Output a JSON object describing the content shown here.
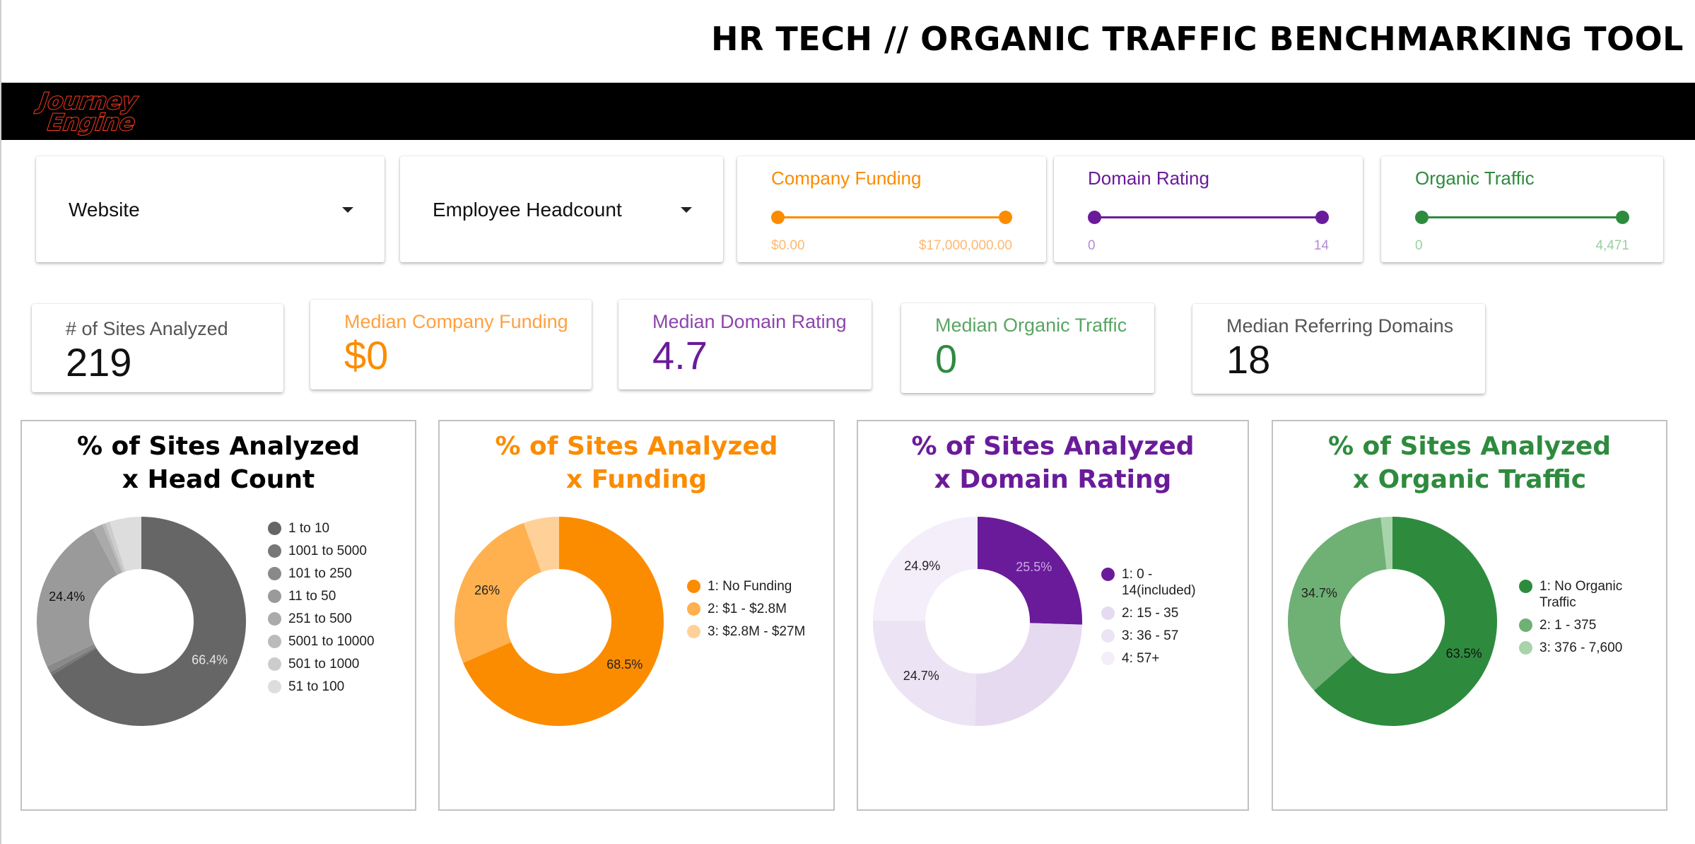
{
  "title": "HR TECH // ORGANIC TRAFFIC BENCHMARKING TOOL",
  "brand": {
    "line1": "Journey",
    "line2": "Engine",
    "color": "#ff3b1f"
  },
  "filters": {
    "website": {
      "label": "Website",
      "icon": "caret-down-icon"
    },
    "headcount": {
      "label": "Employee Headcount",
      "icon": "caret-down-icon"
    },
    "funding": {
      "label": "Company Funding",
      "min": "$0.00",
      "max": "$17,000,000.00",
      "min_value": 0,
      "max_value": 17000000,
      "color": "#fb8c00",
      "range_color": "#ffb871"
    },
    "domain_rating": {
      "label": "Domain Rating",
      "min": "0",
      "max": "14",
      "min_value": 0,
      "max_value": 14,
      "color": "#6a1b9a",
      "range_color": "#b28cd2"
    },
    "organic_traffic": {
      "label": "Organic Traffic",
      "min": "0",
      "max": "4,471",
      "min_value": 0,
      "max_value": 4471,
      "color": "#2e8b3e",
      "range_color": "#9bcf9f"
    }
  },
  "kpis": [
    {
      "label": "# of Sites Analyzed",
      "value": "219",
      "label_color": "#555555",
      "value_color": "#111111"
    },
    {
      "label": "Median Company Funding",
      "value": "$0",
      "label_color": "#ffa040",
      "value_color": "#fb8c00"
    },
    {
      "label": "Median Domain Rating",
      "value": "4.7",
      "label_color": "#8e44ad",
      "value_color": "#6a1b9a"
    },
    {
      "label": "Median Organic Traffic",
      "value": "0",
      "label_color": "#5aa563",
      "value_color": "#2e8b3e"
    },
    {
      "label": "Median Referring Domains",
      "value": "18",
      "label_color": "#555555",
      "value_color": "#111111"
    }
  ],
  "chart_data": [
    {
      "type": "pie",
      "title": [
        "% of Sites Analyzed",
        "x Head Count"
      ],
      "title_color": "#000000",
      "categories": [
        "1 to 10",
        "1001 to 5000",
        "101 to 250",
        "11 to 50",
        "251 to 500",
        "5001 to 10000",
        "501 to 1000",
        "51 to 100"
      ],
      "values": [
        66.4,
        0.5,
        1.0,
        24.4,
        1.6,
        0.5,
        0.7,
        4.9
      ],
      "colors": [
        "#666666",
        "#777777",
        "#898989",
        "#9a9a9a",
        "#aaaaaa",
        "#bbbbbb",
        "#cccccc",
        "#dddddd"
      ],
      "labels": [
        "66.4%",
        "",
        "",
        "24.4%",
        "",
        "",
        "",
        ""
      ],
      "label_colors": [
        "#e6e6e6",
        "",
        "",
        "#111111",
        "",
        "",
        "",
        ""
      ]
    },
    {
      "type": "pie",
      "title": [
        "% of Sites Analyzed",
        "x Funding"
      ],
      "title_color": "#fb8c00",
      "categories": [
        "1: No Funding",
        "2: $1 - $2.8M",
        "3: $2.8M - $27M"
      ],
      "values": [
        68.5,
        26,
        5.5
      ],
      "colors": [
        "#fb8c00",
        "#ffb04f",
        "#ffd199"
      ],
      "labels": [
        "68.5%",
        "26%",
        ""
      ],
      "label_colors": [
        "#222222",
        "#222222",
        ""
      ]
    },
    {
      "type": "pie",
      "title": [
        "% of Sites Analyzed",
        "x Domain Rating"
      ],
      "title_color": "#6a1b9a",
      "categories": [
        "1: 0 - 14(included)",
        "2: 15 - 35",
        "3: 36 - 57",
        "4: 57+"
      ],
      "values": [
        25.5,
        24.9,
        24.7,
        24.9
      ],
      "colors": [
        "#6a1b9a",
        "#e6daf0",
        "#ece3f4",
        "#f3eef9"
      ],
      "labels": [
        "25.5%",
        "",
        "24.7%",
        "24.9%"
      ],
      "label_colors": [
        "#c9a9e3",
        "",
        "#222222",
        "#222222"
      ]
    },
    {
      "type": "pie",
      "title": [
        "% of Sites Analyzed",
        "x Organic Traffic"
      ],
      "title_color": "#2e8b3e",
      "categories": [
        "1: No Organic Traffic",
        "2: 1 - 375",
        "3: 376 - 7,600"
      ],
      "values": [
        63.5,
        34.7,
        1.8
      ],
      "colors": [
        "#2e8b3e",
        "#6fb074",
        "#a9d3ab"
      ],
      "labels": [
        "63.5%",
        "34.7%",
        ""
      ],
      "label_colors": [
        "#111111",
        "#222222",
        ""
      ]
    }
  ]
}
